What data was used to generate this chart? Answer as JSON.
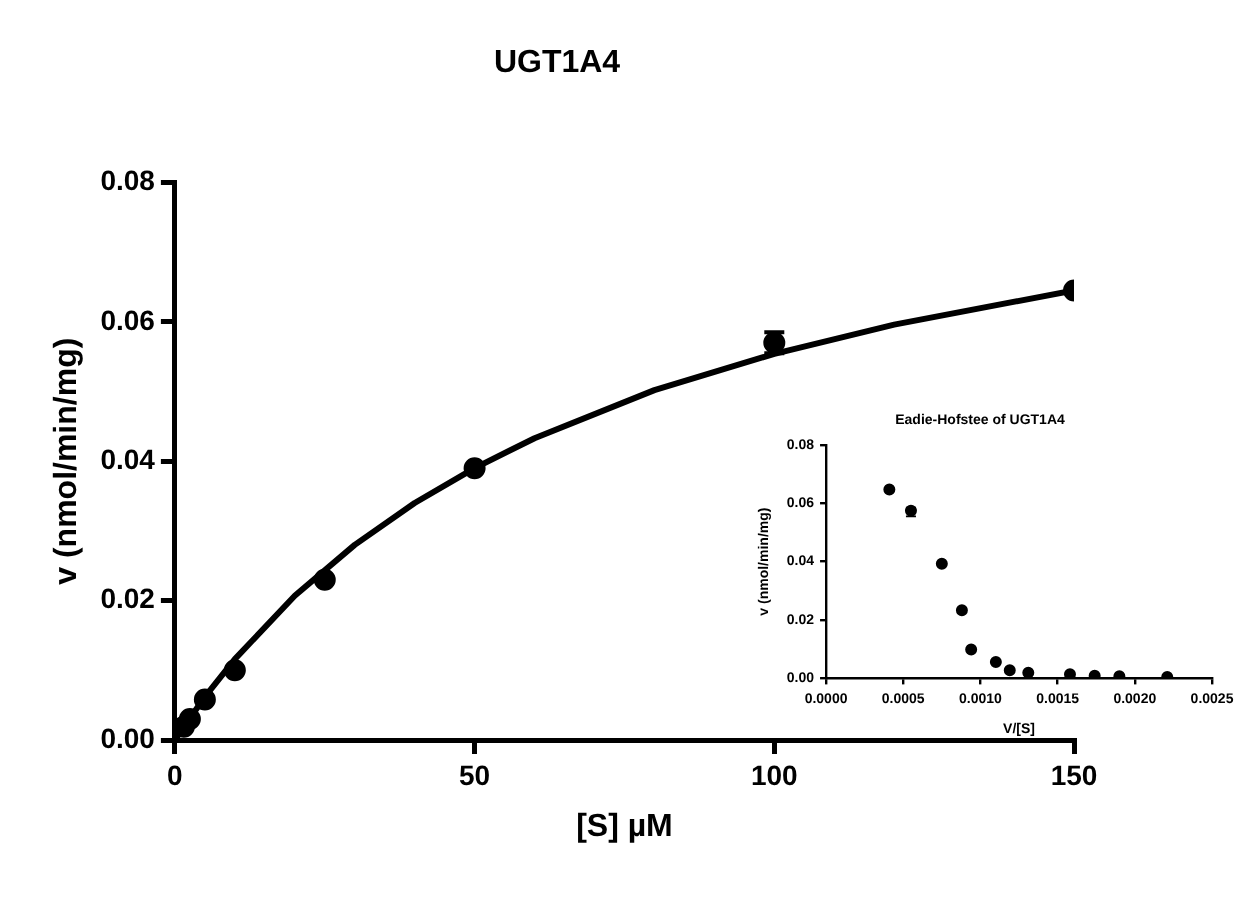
{
  "chart_data": [
    {
      "type": "scatter",
      "title": "UGT1A4",
      "xlabel": "[S] µM",
      "ylabel": "v (nmol/min/mg)",
      "xlim": [
        0,
        150
      ],
      "xticks": [
        0,
        50,
        100,
        150
      ],
      "ylim": [
        0,
        0.08
      ],
      "yticks": [
        {
          "value": 0,
          "label": "0.00"
        },
        {
          "value": 0.02,
          "label": "0.02"
        },
        {
          "value": 0.04,
          "label": "0.04"
        },
        {
          "value": 0.06,
          "label": "0.06"
        },
        {
          "value": 0.08,
          "label": "0.08"
        }
      ],
      "grid": false,
      "legend": false,
      "series": [
        {
          "type": "scatter",
          "marker": "circle",
          "color": "#000000",
          "x": [
            150,
            100,
            50,
            25,
            10,
            5,
            2.5,
            1.5
          ],
          "values": [
            0.0645,
            0.057,
            0.039,
            0.023,
            0.01,
            0.0058,
            0.003,
            0.0019
          ],
          "errors": [
            null,
            [
              0.0555,
              0.0585
            ],
            null,
            null,
            null,
            null,
            null,
            null
          ]
        },
        {
          "type": "line",
          "marker": "none",
          "color": "#000000",
          "x": [
            0,
            5,
            10,
            20,
            30,
            40,
            50,
            60,
            80,
            100,
            120,
            150
          ],
          "values": [
            0,
            0.0062,
            0.0116,
            0.0207,
            0.028,
            0.034,
            0.039,
            0.0433,
            0.0502,
            0.0554,
            0.0596,
            0.0645
          ]
        }
      ]
    },
    {
      "type": "scatter",
      "title": "Eadie-Hofstee of UGT1A4",
      "xlabel": "V/[S]",
      "ylabel": "v (nmol/min/mg)",
      "xlim": [
        0,
        0.0025
      ],
      "xticks": [
        {
          "value": 0,
          "label": "0.0000"
        },
        {
          "value": 0.0005,
          "label": "0.0005"
        },
        {
          "value": 0.001,
          "label": "0.0010"
        },
        {
          "value": 0.0015,
          "label": "0.0015"
        },
        {
          "value": 0.002,
          "label": "0.0020"
        },
        {
          "value": 0.0025,
          "label": "0.0025"
        }
      ],
      "ylim": [
        0,
        0.08
      ],
      "yticks": [
        {
          "value": 0,
          "label": "0.00"
        },
        {
          "value": 0.02,
          "label": "0.02"
        },
        {
          "value": 0.04,
          "label": "0.04"
        },
        {
          "value": 0.06,
          "label": "0.06"
        },
        {
          "value": 0.08,
          "label": "0.08"
        }
      ],
      "grid": false,
      "legend": false,
      "series": [
        {
          "type": "scatter",
          "marker": "circle",
          "color": "#000000",
          "x": [
            0.00041,
            0.00055,
            0.00075,
            0.00088,
            0.00094,
            0.0011,
            0.00119,
            0.00131,
            0.00158,
            0.00174,
            0.0019,
            0.00221
          ],
          "values": [
            0.0647,
            0.0574,
            0.0393,
            0.0233,
            0.0099,
            0.0056,
            0.0028,
            0.0019,
            0.0014,
            0.0009,
            0.0007,
            0.0005
          ],
          "errors": [
            null,
            [
              0.0555,
              0.0585
            ],
            null,
            null,
            null,
            null,
            null,
            null,
            null,
            null,
            null,
            null
          ]
        }
      ]
    }
  ]
}
